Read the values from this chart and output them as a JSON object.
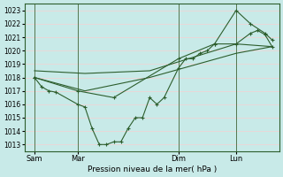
{
  "xlabel": "Pression niveau de la mer( hPa )",
  "bg_color": "#c8eae8",
  "grid_color": "#e8d8d8",
  "line_color": "#2d5e2d",
  "ylim": [
    1012.5,
    1023.5
  ],
  "yticks": [
    1013,
    1014,
    1015,
    1016,
    1017,
    1018,
    1019,
    1020,
    1021,
    1022,
    1023
  ],
  "xtick_labels": [
    "Sam",
    "Mar",
    "Dim",
    "Lun"
  ],
  "xtick_pos": [
    0.5,
    3.5,
    10.5,
    14.5
  ],
  "vline_pos": [
    0.5,
    3.5,
    10.5,
    14.5
  ],
  "total_xlim": [
    -0.2,
    17.5
  ],
  "series1_x": [
    0.5,
    1.0,
    1.5,
    2.0,
    3.5,
    4.0,
    4.5,
    5.0,
    5.5,
    6.0,
    6.5,
    7.0,
    7.5,
    8.0,
    8.5,
    9.0,
    9.5,
    10.5,
    11.0,
    11.5,
    12.0,
    12.5,
    13.0,
    14.5,
    15.5,
    16.0,
    16.5,
    17.0
  ],
  "series1_y": [
    1018.0,
    1017.3,
    1017.0,
    1016.9,
    1016.0,
    1015.8,
    1014.2,
    1013.0,
    1013.0,
    1013.2,
    1013.2,
    1014.2,
    1015.0,
    1015.0,
    1016.5,
    1016.0,
    1016.5,
    1018.7,
    1019.4,
    1019.4,
    1019.8,
    1020.0,
    1020.5,
    1020.5,
    1021.3,
    1021.5,
    1021.2,
    1020.3
  ],
  "series2_x": [
    0.5,
    4.0,
    8.5,
    14.5,
    17.0
  ],
  "series2_y": [
    1018.0,
    1017.0,
    1018.0,
    1019.8,
    1020.3
  ],
  "series3_x": [
    0.5,
    4.0,
    8.5,
    14.5,
    17.0
  ],
  "series3_y": [
    1018.5,
    1018.3,
    1018.5,
    1020.5,
    1020.3
  ],
  "series4_x": [
    0.5,
    3.5,
    6.0,
    10.5,
    13.0,
    14.5,
    15.5,
    16.5,
    17.0
  ],
  "series4_y": [
    1018.0,
    1017.0,
    1016.5,
    1019.4,
    1020.5,
    1023.0,
    1022.0,
    1021.3,
    1020.8
  ]
}
